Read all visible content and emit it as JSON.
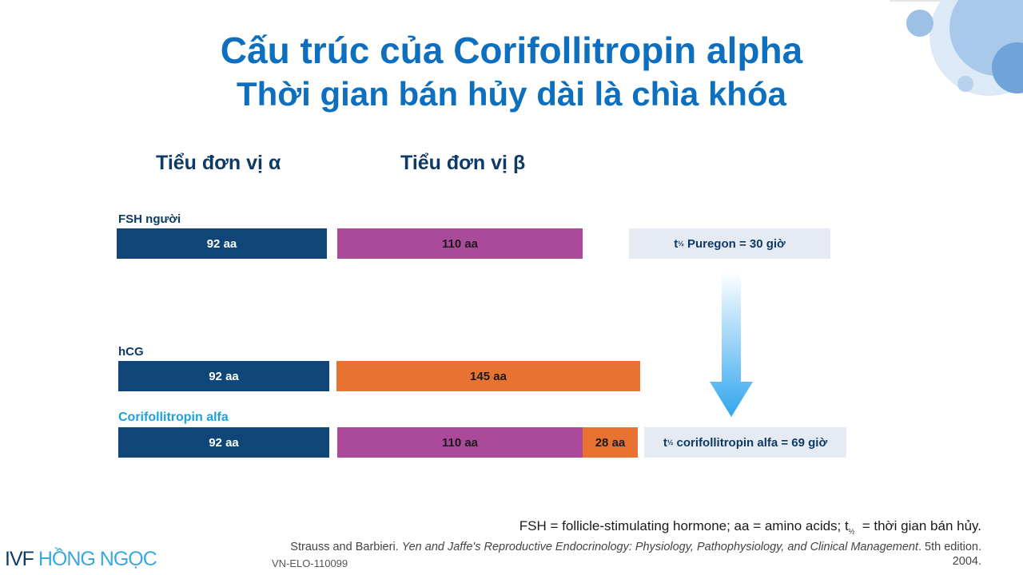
{
  "title": {
    "line1": "Cấu trúc của Corifollitropin alpha",
    "line2": "Thời gian bán hủy dài là chìa khóa"
  },
  "column_headers": [
    "Tiểu đơn vị α",
    "Tiểu đơn vị β"
  ],
  "rows": [
    {
      "label": "FSH người",
      "segments": [
        "92 aa",
        "110 aa"
      ],
      "half_life": {
        "t": "t",
        "sub": "½",
        "text": " Puregon = 30 giờ"
      }
    },
    {
      "label": "hCG",
      "segments": [
        "92 aa",
        "145 aa"
      ]
    },
    {
      "label": "Corifollitropin alfa",
      "segments": [
        "92 aa",
        "110 aa",
        "28 aa"
      ],
      "half_life": {
        "t": "t",
        "sub": "½",
        "text": " corifollitropin alfa = 69 giờ"
      }
    }
  ],
  "footnote": {
    "text1": "FSH = follicle-stimulating hormone; aa = amino acids; t",
    "sub": "½",
    "text2": "  = thời gian bán hủy."
  },
  "reference": {
    "authors": "Strauss and Barbieri. ",
    "book": "Yen and Jaffe's Reproductive Endocrinology: Physiology, Pathophysiology, and Clinical Management",
    "edition": ". 5th edition. 2004."
  },
  "code": "VN-ELO-110099",
  "logo": {
    "part1": "IVF ",
    "part2": "HỒNG NGỌC"
  }
}
